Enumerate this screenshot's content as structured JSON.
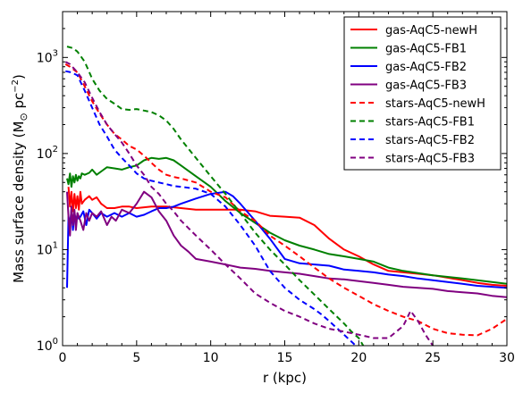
{
  "chart_data": {
    "type": "line",
    "xlabel": "r (kpc)",
    "ylabel": "Mass surface density (M",
    "ylabel_sun": "⊙",
    "ylabel_unit": " pc",
    "ylabel_exp": "−2",
    "ylabel_close": ")",
    "xlim": [
      0,
      30
    ],
    "ylim": [
      1,
      3000
    ],
    "yscale": "log",
    "grid": false,
    "legend_position": "top-right",
    "x_ticks": [
      0,
      5,
      10,
      15,
      20,
      25,
      30
    ],
    "x_tick_labels": [
      "0",
      "5",
      "10",
      "15",
      "20",
      "25",
      "30"
    ],
    "y_ticks": [
      1,
      10,
      100,
      1000
    ],
    "y_tick_bases": [
      "10",
      "10",
      "10",
      "10"
    ],
    "y_tick_exps": [
      "0",
      "1",
      "2",
      "3"
    ],
    "series": [
      {
        "name": "gas-AqC5-newH",
        "color": "#ff0000",
        "dash": "solid",
        "x": [
          0.4,
          0.5,
          0.6,
          0.7,
          0.8,
          0.9,
          1.0,
          1.1,
          1.2,
          1.3,
          1.5,
          1.8,
          2.0,
          2.3,
          2.6,
          3.0,
          3.5,
          4.0,
          4.5,
          5.0,
          6.0,
          7.0,
          8.0,
          9.0,
          10.0,
          11.0,
          12.0,
          13.0,
          14.0,
          15.0,
          16.0,
          17.0,
          18.0,
          19.0,
          20.0,
          21.0,
          22.0,
          23.0,
          24.0,
          25.0,
          26.0,
          27.0,
          28.0,
          29.0,
          30.0
        ],
        "y": [
          45,
          28,
          40,
          25,
          38,
          27,
          36,
          26,
          40,
          30,
          33,
          36,
          33,
          35,
          30,
          27,
          27,
          28,
          28,
          27,
          28,
          28,
          27,
          26,
          26,
          26,
          26,
          25,
          22.5,
          22,
          21.5,
          18,
          13,
          10,
          8.5,
          7,
          6,
          5.8,
          5.6,
          5.4,
          5.1,
          4.8,
          4.5,
          4.3,
          4.2
        ]
      },
      {
        "name": "gas-AqC5-FB1",
        "color": "#008000",
        "dash": "solid",
        "x": [
          0.3,
          0.4,
          0.5,
          0.6,
          0.7,
          0.8,
          0.9,
          1.0,
          1.1,
          1.2,
          1.3,
          1.5,
          1.8,
          2.0,
          2.3,
          2.6,
          3.0,
          3.5,
          4.0,
          4.5,
          5.0,
          5.5,
          6.0,
          6.5,
          7.0,
          7.5,
          8.0,
          9.0,
          10.0,
          11.0,
          12.0,
          13.0,
          14.0,
          15.0,
          16.0,
          17.0,
          18.0,
          19.0,
          20.0,
          21.0,
          22.0,
          23.0,
          24.0,
          25.0,
          26.0,
          27.0,
          28.0,
          29.0,
          30.0
        ],
        "y": [
          55,
          48,
          62,
          45,
          58,
          50,
          60,
          52,
          58,
          55,
          62,
          60,
          63,
          68,
          60,
          65,
          72,
          70,
          68,
          72,
          75,
          85,
          90,
          88,
          90,
          85,
          75,
          58,
          45,
          32,
          24,
          19,
          15,
          12.5,
          11,
          10,
          9,
          8.5,
          8,
          7.5,
          6.5,
          6,
          5.7,
          5.4,
          5.2,
          5,
          4.8,
          4.6,
          4.4
        ]
      },
      {
        "name": "gas-AqC5-FB2",
        "color": "#0000ff",
        "dash": "solid",
        "x": [
          0.3,
          0.4,
          0.5,
          0.6,
          0.7,
          0.8,
          0.9,
          1.0,
          1.1,
          1.2,
          1.4,
          1.6,
          1.8,
          2.0,
          2.3,
          2.6,
          3.0,
          3.5,
          4.0,
          4.5,
          5.0,
          5.5,
          6.0,
          6.5,
          7.0,
          7.5,
          8.0,
          9.0,
          10.0,
          11.0,
          11.5,
          12.0,
          13.0,
          14.0,
          15.0,
          16.0,
          17.0,
          18.0,
          19.0,
          20.0,
          21.0,
          22.0,
          23.0,
          24.0,
          25.0,
          26.0,
          27.0,
          28.0,
          29.0,
          30.0
        ],
        "y": [
          4,
          22,
          18,
          26,
          16,
          24,
          20,
          23,
          21,
          22,
          25,
          18,
          26,
          24,
          21,
          24,
          22,
          24,
          22,
          24,
          22,
          23,
          25,
          27,
          27,
          28,
          30,
          34,
          38,
          40,
          36,
          30,
          20,
          13,
          8,
          7.2,
          7,
          6.8,
          6.2,
          6,
          5.8,
          5.5,
          5.3,
          5,
          4.8,
          4.6,
          4.4,
          4.2,
          4.1,
          4
        ]
      },
      {
        "name": "gas-AqC5-FB3",
        "color": "#800080",
        "dash": "solid",
        "x": [
          0.3,
          0.4,
          0.5,
          0.6,
          0.7,
          0.8,
          0.9,
          1.0,
          1.2,
          1.4,
          1.6,
          1.8,
          2.0,
          2.3,
          2.6,
          3.0,
          3.3,
          3.6,
          4.0,
          4.5,
          5.0,
          5.5,
          6.0,
          6.5,
          7.0,
          7.5,
          8.0,
          8.5,
          9.0,
          10.0,
          11.0,
          12.0,
          13.0,
          14.0,
          15.0,
          16.0,
          17.0,
          18.0,
          19.0,
          20.0,
          21.0,
          22.0,
          23.0,
          24.0,
          25.0,
          26.0,
          27.0,
          28.0,
          29.0,
          30.0
        ],
        "y": [
          40,
          22,
          14,
          28,
          18,
          26,
          16,
          24,
          20,
          16,
          24,
          20,
          24,
          22,
          25,
          18,
          22,
          20,
          26,
          24,
          30,
          40,
          35,
          25,
          20,
          14,
          11,
          9.5,
          8,
          7.5,
          7,
          6.5,
          6.3,
          6,
          5.8,
          5.6,
          5.3,
          5,
          4.9,
          4.7,
          4.5,
          4.3,
          4.1,
          4,
          3.9,
          3.7,
          3.6,
          3.5,
          3.3,
          3.2
        ]
      },
      {
        "name": "stars-AqC5-newH",
        "color": "#ff0000",
        "dash": "dashed",
        "x": [
          0.2,
          0.5,
          1.0,
          1.5,
          2.0,
          2.5,
          3.0,
          3.5,
          4.0,
          4.5,
          5.0,
          5.5,
          6.0,
          6.5,
          7.0,
          7.5,
          8.0,
          9.0,
          10.0,
          11.0,
          12.0,
          13.0,
          14.0,
          15.0,
          16.0,
          17.0,
          18.0,
          19.0,
          20.0,
          21.0,
          22.0,
          23.0,
          24.0,
          25.0,
          26.0,
          27.0,
          28.0,
          29.0,
          30.0
        ],
        "y": [
          850,
          800,
          700,
          500,
          350,
          260,
          200,
          160,
          140,
          120,
          110,
          95,
          80,
          68,
          60,
          57,
          55,
          50,
          40,
          35,
          25,
          20,
          14,
          11,
          8.5,
          6.5,
          5,
          4,
          3.3,
          2.7,
          2.3,
          2,
          1.8,
          1.5,
          1.35,
          1.3,
          1.28,
          1.5,
          1.9
        ]
      },
      {
        "name": "stars-AqC5-FB1",
        "color": "#008000",
        "dash": "dashed",
        "x": [
          0.3,
          0.7,
          1.0,
          1.5,
          2.0,
          2.5,
          3.0,
          3.5,
          4.0,
          4.5,
          5.0,
          5.5,
          6.0,
          6.5,
          7.0,
          7.5,
          8.0,
          9.0,
          10.0,
          11.0,
          12.0,
          13.0,
          14.0,
          15.0,
          16.0,
          17.0,
          18.0,
          19.0,
          19.5,
          20.0,
          20.3
        ],
        "y": [
          1300,
          1250,
          1150,
          900,
          600,
          450,
          370,
          330,
          290,
          285,
          290,
          280,
          270,
          250,
          220,
          180,
          140,
          90,
          58,
          38,
          24,
          15,
          10,
          7,
          4.8,
          3.4,
          2.4,
          1.7,
          1.4,
          1.2,
          1.0
        ]
      },
      {
        "name": "stars-AqC5-FB2",
        "color": "#0000ff",
        "dash": "dashed",
        "x": [
          0.2,
          0.6,
          1.0,
          1.5,
          2.0,
          2.5,
          3.0,
          3.5,
          4.0,
          4.5,
          5.0,
          5.5,
          6.0,
          6.5,
          7.0,
          7.5,
          8.0,
          9.0,
          10.0,
          11.0,
          12.0,
          13.0,
          14.0,
          15.0,
          16.0,
          17.0,
          17.5,
          18.0,
          19.0,
          19.8
        ],
        "y": [
          720,
          700,
          650,
          450,
          300,
          200,
          150,
          110,
          90,
          75,
          62,
          55,
          52,
          50,
          48,
          46,
          45,
          43,
          38,
          28,
          18,
          11,
          6,
          4,
          3,
          2.4,
          2.1,
          1.8,
          1.3,
          1.0
        ]
      },
      {
        "name": "stars-AqC5-FB3",
        "color": "#800080",
        "dash": "dashed",
        "x": [
          0.2,
          0.5,
          1.0,
          1.5,
          2.0,
          2.5,
          3.0,
          3.5,
          4.0,
          4.5,
          5.0,
          5.5,
          6.0,
          6.5,
          7.0,
          7.5,
          8.0,
          9.0,
          10.0,
          11.0,
          12.0,
          13.0,
          14.0,
          15.0,
          16.0,
          17.0,
          18.0,
          19.0,
          20.0,
          21.0,
          22.0,
          23.0,
          23.5,
          24.0,
          24.5,
          25.0
        ],
        "y": [
          900,
          850,
          700,
          550,
          380,
          270,
          200,
          160,
          130,
          100,
          75,
          60,
          45,
          38,
          30,
          25,
          20,
          14,
          10,
          7,
          5,
          3.5,
          2.8,
          2.3,
          2,
          1.7,
          1.5,
          1.4,
          1.3,
          1.2,
          1.2,
          1.6,
          2.3,
          1.8,
          1.3,
          1.0
        ]
      }
    ]
  }
}
